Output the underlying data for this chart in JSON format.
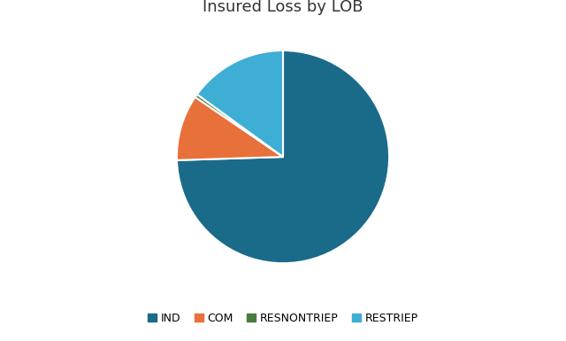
{
  "title": "Insured Loss by LOB",
  "labels": [
    "IND",
    "COM",
    "RESNONTRIEP",
    "RESTRIEP"
  ],
  "values": [
    74.5,
    10.0,
    0.5,
    15.0
  ],
  "colors": [
    "#1a6b8a",
    "#e8703a",
    "#4a7c3f",
    "#3eaed4"
  ],
  "startangle": 90,
  "background_color": "#ffffff",
  "title_fontsize": 13,
  "legend_fontsize": 9,
  "fig_width": 6.4,
  "fig_height": 3.85
}
